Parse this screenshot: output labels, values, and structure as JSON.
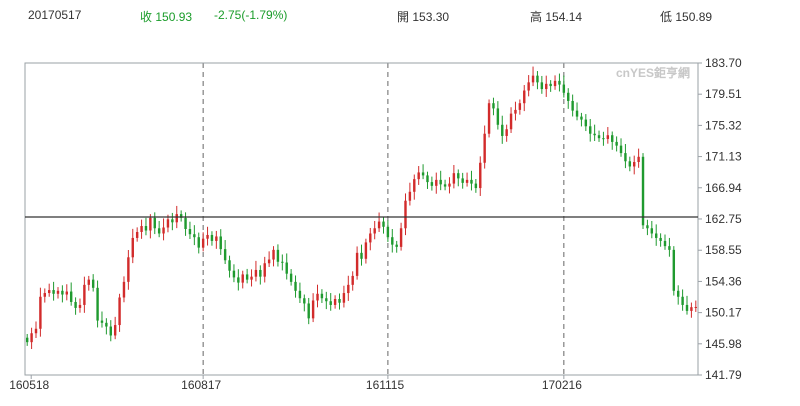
{
  "header": {
    "date": "20170517",
    "close_label": "收",
    "close": "150.93",
    "change": "-2.75(-1.79%)",
    "open_label": "開",
    "open": "153.30",
    "high_label": "高",
    "high": "154.14",
    "low_label": "低",
    "low": "150.89"
  },
  "watermark": "cnYES鉅亨網",
  "colors": {
    "up": "#d22b2b",
    "down": "#1f9a2f",
    "header_change": "#1a9c2a"
  },
  "chart_data": {
    "type": "candlestick",
    "y_ticks": [
      "183.70",
      "179.51",
      "175.32",
      "171.13",
      "166.94",
      "162.75",
      "158.55",
      "154.36",
      "150.17",
      "145.98",
      "141.79"
    ],
    "ylim": [
      141.79,
      183.7
    ],
    "x_ticks": [
      "160518",
      "160817",
      "161115",
      "170216"
    ],
    "reference_line": 162.75,
    "grid": "vertical dashed at x ticks",
    "series": [
      {
        "c": 146.2
      },
      {
        "c": 147.4
      },
      {
        "c": 148.0
      },
      {
        "c": 152.3
      },
      {
        "c": 152.8
      },
      {
        "c": 153.2
      },
      {
        "c": 152.7
      },
      {
        "c": 153.1
      },
      {
        "c": 152.6
      },
      {
        "c": 153.0
      },
      {
        "c": 151.6
      },
      {
        "c": 150.8
      },
      {
        "c": 151.2
      },
      {
        "c": 153.9
      },
      {
        "c": 154.6
      },
      {
        "c": 153.5
      },
      {
        "c": 149.1
      },
      {
        "c": 148.8
      },
      {
        "c": 148.3
      },
      {
        "c": 147.1
      },
      {
        "c": 148.5
      },
      {
        "c": 152.2
      },
      {
        "c": 154.3
      },
      {
        "c": 157.6
      },
      {
        "c": 160.2
      },
      {
        "c": 161.0
      },
      {
        "c": 161.8
      },
      {
        "c": 161.2
      },
      {
        "c": 162.9
      },
      {
        "c": 161.5
      },
      {
        "c": 160.8
      },
      {
        "c": 161.6
      },
      {
        "c": 162.7
      },
      {
        "c": 162.3
      },
      {
        "c": 163.4
      },
      {
        "c": 162.9
      },
      {
        "c": 161.4
      },
      {
        "c": 160.7
      },
      {
        "c": 160.3
      },
      {
        "c": 158.9
      },
      {
        "c": 160.1
      },
      {
        "c": 160.6
      },
      {
        "c": 159.8
      },
      {
        "c": 160.4
      },
      {
        "c": 158.7
      },
      {
        "c": 157.2
      },
      {
        "c": 155.8
      },
      {
        "c": 154.9
      },
      {
        "c": 154.2
      },
      {
        "c": 155.3
      },
      {
        "c": 154.6
      },
      {
        "c": 155.0
      },
      {
        "c": 155.9
      },
      {
        "c": 155.0
      },
      {
        "c": 156.8
      },
      {
        "c": 157.3
      },
      {
        "c": 158.6
      },
      {
        "c": 157.0
      },
      {
        "c": 156.9
      },
      {
        "c": 155.4
      },
      {
        "c": 154.3
      },
      {
        "c": 153.1
      },
      {
        "c": 152.1
      },
      {
        "c": 151.4
      },
      {
        "c": 149.4
      },
      {
        "c": 151.8
      },
      {
        "c": 152.7
      },
      {
        "c": 152.1
      },
      {
        "c": 151.7
      },
      {
        "c": 151.2
      },
      {
        "c": 152.0
      },
      {
        "c": 151.5
      },
      {
        "c": 152.8
      },
      {
        "c": 153.9
      },
      {
        "c": 155.1
      },
      {
        "c": 158.2
      },
      {
        "c": 157.4
      },
      {
        "c": 159.6
      },
      {
        "c": 160.8
      },
      {
        "c": 161.5
      },
      {
        "c": 162.4
      },
      {
        "c": 161.7
      },
      {
        "c": 160.3
      },
      {
        "c": 159.3
      },
      {
        "c": 159.0
      },
      {
        "c": 161.5
      },
      {
        "c": 165.2
      },
      {
        "c": 166.4
      },
      {
        "c": 168.1
      },
      {
        "c": 169.0
      },
      {
        "c": 168.6
      },
      {
        "c": 167.7
      },
      {
        "c": 167.2
      },
      {
        "c": 168.0
      },
      {
        "c": 167.4
      },
      {
        "c": 167.1
      },
      {
        "c": 167.5
      },
      {
        "c": 168.9
      },
      {
        "c": 168.2
      },
      {
        "c": 167.6
      },
      {
        "c": 168.0
      },
      {
        "c": 167.5
      },
      {
        "c": 166.9
      },
      {
        "c": 170.3
      },
      {
        "c": 174.2
      },
      {
        "c": 178.3
      },
      {
        "c": 177.6
      },
      {
        "c": 175.4
      },
      {
        "c": 173.9
      },
      {
        "c": 174.8
      },
      {
        "c": 176.9
      },
      {
        "c": 177.4
      },
      {
        "c": 178.3
      },
      {
        "c": 180.0
      },
      {
        "c": 181.1
      },
      {
        "c": 182.0
      },
      {
        "c": 181.1
      },
      {
        "c": 180.2
      },
      {
        "c": 180.9
      },
      {
        "c": 180.6
      },
      {
        "c": 181.3
      },
      {
        "c": 180.8
      },
      {
        "c": 179.7
      },
      {
        "c": 178.6
      },
      {
        "c": 177.3
      },
      {
        "c": 176.5
      },
      {
        "c": 176.1
      },
      {
        "c": 175.2
      },
      {
        "c": 174.2
      },
      {
        "c": 174.0
      },
      {
        "c": 173.6
      },
      {
        "c": 173.5
      },
      {
        "c": 174.0
      },
      {
        "c": 173.1
      },
      {
        "c": 172.6
      },
      {
        "c": 171.6
      },
      {
        "c": 170.5
      },
      {
        "c": 169.8
      },
      {
        "c": 170.4
      },
      {
        "c": 171.1
      },
      {
        "c": 161.9
      },
      {
        "c": 161.5
      },
      {
        "c": 160.8
      },
      {
        "c": 160.2
      },
      {
        "c": 159.8
      },
      {
        "c": 159.1
      },
      {
        "c": 158.6
      },
      {
        "c": 153.1
      },
      {
        "c": 152.3
      },
      {
        "c": 151.2
      },
      {
        "c": 150.4
      },
      {
        "c": 150.9
      },
      {
        "c": 150.93
      }
    ]
  }
}
